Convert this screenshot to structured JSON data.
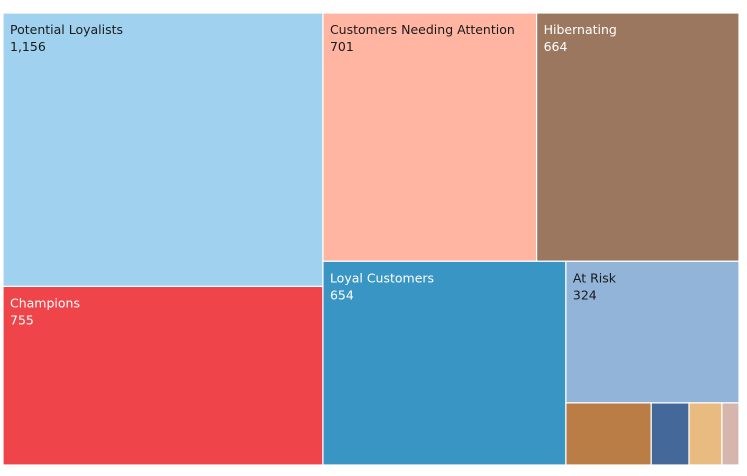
{
  "chart_data": {
    "type": "treemap",
    "title": "",
    "segments": [
      {
        "name": "Potential Loyalists",
        "value": 1156,
        "display": "1,156",
        "color": "#a0d2ef",
        "text_color": "#1a1a1a"
      },
      {
        "name": "Customers Needing Attention",
        "value": 701,
        "display": "701",
        "color": "#ffb5a1",
        "text_color": "#1a1a1a"
      },
      {
        "name": "Hibernating",
        "value": 664,
        "display": "664",
        "color": "#9b7760",
        "text_color": "#ffffff"
      },
      {
        "name": "Champions",
        "value": 755,
        "display": "755",
        "color": "#ef4449",
        "text_color": "#ffffff"
      },
      {
        "name": "Loyal Customers",
        "value": 654,
        "display": "654",
        "color": "#3895c4",
        "text_color": "#ffffff"
      },
      {
        "name": "At Risk",
        "value": 324,
        "display": "324",
        "color": "#91b4d8",
        "text_color": "#1a1a1a"
      },
      {
        "name": "",
        "value": 70,
        "display": "",
        "color": "#b97d45",
        "text_color": "#ffffff"
      },
      {
        "name": "",
        "value": 31,
        "display": "",
        "color": "#45689a",
        "text_color": "#ffffff"
      },
      {
        "name": "",
        "value": 27,
        "display": "",
        "color": "#e9bb80",
        "text_color": "#1a1a1a"
      },
      {
        "name": "",
        "value": 14,
        "display": "",
        "color": "#d6b6ac",
        "text_color": "#1a1a1a"
      }
    ]
  }
}
